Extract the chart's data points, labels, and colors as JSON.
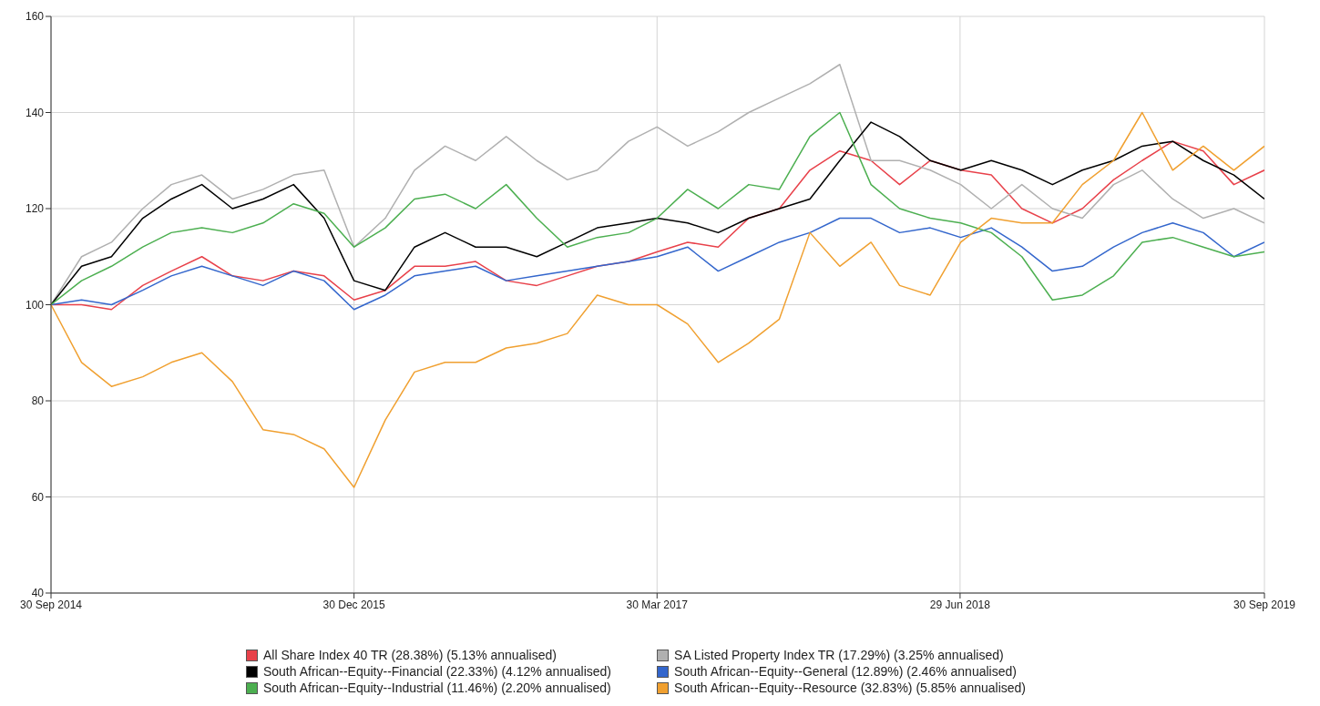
{
  "chart_data": {
    "type": "line",
    "x": [
      "2014-09-30",
      "2014-11-15",
      "2014-12-30",
      "2015-02-15",
      "2015-03-30",
      "2015-05-15",
      "2015-06-30",
      "2015-08-15",
      "2015-09-30",
      "2015-11-15",
      "2015-12-30",
      "2016-02-15",
      "2016-03-30",
      "2016-05-15",
      "2016-06-30",
      "2016-08-15",
      "2016-09-30",
      "2016-11-15",
      "2016-12-30",
      "2017-02-15",
      "2017-03-30",
      "2017-05-15",
      "2017-06-30",
      "2017-08-15",
      "2017-09-30",
      "2017-11-15",
      "2017-12-30",
      "2018-02-15",
      "2018-03-30",
      "2018-05-15",
      "2018-06-30",
      "2018-08-15",
      "2018-09-30",
      "2018-11-15",
      "2018-12-30",
      "2019-02-15",
      "2019-03-30",
      "2019-05-15",
      "2019-06-30",
      "2019-08-15",
      "2019-09-30"
    ],
    "series": [
      {
        "name": "All Share Index 40 TR (28.38%) (5.13% annualised)",
        "color": "#e8414a",
        "values": [
          100,
          100,
          99,
          104,
          107,
          110,
          106,
          105,
          107,
          106,
          101,
          103,
          108,
          108,
          109,
          105,
          104,
          106,
          108,
          109,
          111,
          113,
          112,
          118,
          120,
          128,
          132,
          130,
          125,
          130,
          128,
          127,
          120,
          117,
          120,
          126,
          130,
          134,
          132,
          125,
          128
        ]
      },
      {
        "name": "SA Listed Property Index TR (17.29%) (3.25% annualised)",
        "color": "#b0b0b0",
        "values": [
          100,
          110,
          113,
          120,
          125,
          127,
          122,
          124,
          127,
          128,
          112,
          118,
          128,
          133,
          130,
          135,
          130,
          126,
          128,
          134,
          137,
          133,
          136,
          140,
          143,
          146,
          150,
          130,
          130,
          128,
          125,
          120,
          125,
          120,
          118,
          125,
          128,
          122,
          118,
          120,
          117
        ]
      },
      {
        "name": "South African--Equity--Financial (22.33%) (4.12% annualised)",
        "color": "#000000",
        "values": [
          100,
          108,
          110,
          118,
          122,
          125,
          120,
          122,
          125,
          118,
          105,
          103,
          112,
          115,
          112,
          112,
          110,
          113,
          116,
          117,
          118,
          117,
          115,
          118,
          120,
          122,
          130,
          138,
          135,
          130,
          128,
          130,
          128,
          125,
          128,
          130,
          133,
          134,
          130,
          127,
          122
        ]
      },
      {
        "name": "South African--Equity--General (12.89%) (2.46% annualised)",
        "color": "#3366cc",
        "values": [
          100,
          101,
          100,
          103,
          106,
          108,
          106,
          104,
          107,
          105,
          99,
          102,
          106,
          107,
          108,
          105,
          106,
          107,
          108,
          109,
          110,
          112,
          107,
          110,
          113,
          115,
          118,
          118,
          115,
          116,
          114,
          116,
          112,
          107,
          108,
          112,
          115,
          117,
          115,
          110,
          113
        ]
      },
      {
        "name": "South African--Equity--Industrial (11.46%) (2.20% annualised)",
        "color": "#4caf50",
        "values": [
          100,
          105,
          108,
          112,
          115,
          116,
          115,
          117,
          121,
          119,
          112,
          116,
          122,
          123,
          120,
          125,
          118,
          112,
          114,
          115,
          118,
          124,
          120,
          125,
          124,
          135,
          140,
          125,
          120,
          118,
          117,
          115,
          110,
          101,
          102,
          106,
          113,
          114,
          112,
          110,
          111
        ]
      },
      {
        "name": "South African--Equity--Resource (32.83%) (5.85% annualised)",
        "color": "#f0a030",
        "values": [
          100,
          88,
          83,
          85,
          88,
          90,
          84,
          74,
          73,
          70,
          62,
          76,
          86,
          88,
          88,
          91,
          92,
          94,
          102,
          100,
          100,
          96,
          88,
          92,
          97,
          115,
          108,
          113,
          104,
          102,
          113,
          118,
          117,
          117,
          125,
          130,
          140,
          128,
          133,
          128,
          133
        ]
      }
    ],
    "xlim": [
      "2014-09-30",
      "2019-09-30"
    ],
    "xticks": [
      {
        "value": "2014-09-30",
        "label": "30 Sep 2014"
      },
      {
        "value": "2015-12-30",
        "label": "30 Dec 2015"
      },
      {
        "value": "2017-03-30",
        "label": "30 Mar 2017"
      },
      {
        "value": "2018-06-29",
        "label": "29 Jun 2018"
      },
      {
        "value": "2019-09-30",
        "label": "30 Sep 2019"
      }
    ],
    "ylim": [
      40,
      160
    ],
    "yticks": [
      40,
      60,
      80,
      100,
      120,
      140,
      160
    ],
    "grid": true,
    "legend": "bottom",
    "marker": "none",
    "line_style": "solid"
  }
}
